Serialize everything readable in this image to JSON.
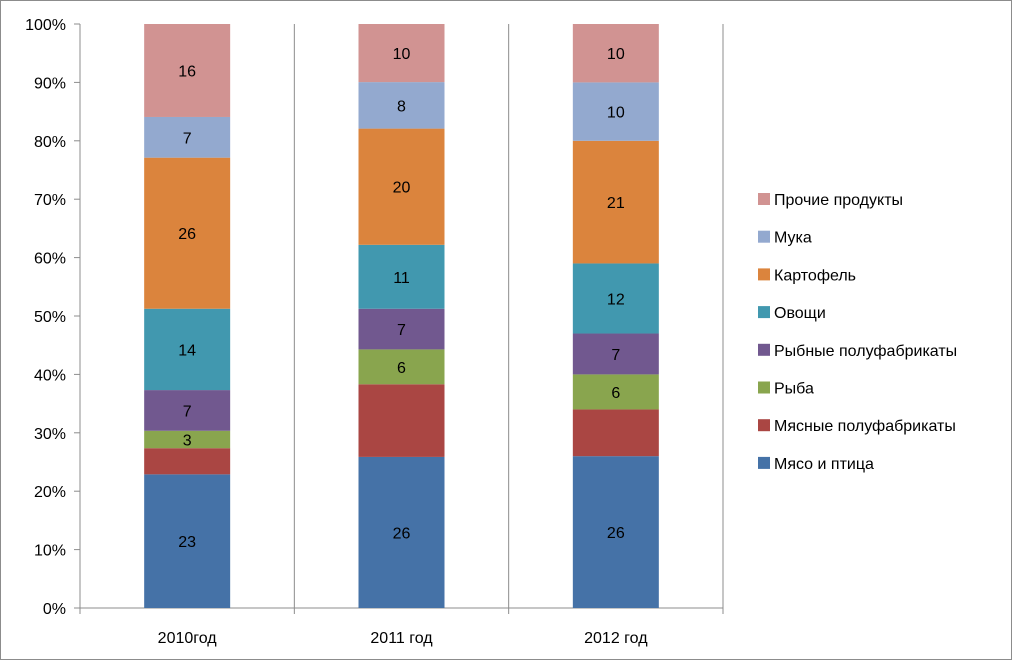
{
  "chart_data": {
    "type": "bar",
    "stacked": "percent",
    "categories": [
      "2010год",
      "2011 год",
      "2012 год"
    ],
    "series": [
      {
        "name": "Мясо и птица",
        "values": [
          23,
          26,
          26
        ],
        "labels": [
          "23",
          "26",
          "26"
        ],
        "color": "#4572a7"
      },
      {
        "name": "Мясные полуфабрикаты",
        "values": [
          4.5,
          12.5,
          8
        ],
        "labels": [
          "",
          "",
          ""
        ],
        "color": "#aa4643"
      },
      {
        "name": "Рыба",
        "values": [
          3,
          6,
          6
        ],
        "labels": [
          "3",
          "6",
          "6"
        ],
        "color": "#89a54e"
      },
      {
        "name": "Рыбные полуфабрикаты",
        "values": [
          7,
          7,
          7
        ],
        "labels": [
          "7",
          "7",
          "7"
        ],
        "color": "#71588f"
      },
      {
        "name": "Овощи",
        "values": [
          14,
          11,
          12
        ],
        "labels": [
          "14",
          "11",
          "12"
        ],
        "color": "#4198af"
      },
      {
        "name": "Картофель",
        "values": [
          26,
          20,
          21
        ],
        "labels": [
          "26",
          "20",
          "21"
        ],
        "color": "#db843d"
      },
      {
        "name": "Мука",
        "values": [
          7,
          8,
          10
        ],
        "labels": [
          "7",
          "8",
          "10"
        ],
        "color": "#93a9cf"
      },
      {
        "name": "Прочие продукты",
        "values": [
          16,
          10,
          10
        ],
        "labels": [
          "16",
          "10",
          "10"
        ],
        "color": "#d19392"
      }
    ],
    "yticks": [
      "0%",
      "10%",
      "20%",
      "30%",
      "40%",
      "50%",
      "60%",
      "70%",
      "80%",
      "90%",
      "100%"
    ],
    "ylim": [
      0,
      100
    ],
    "grid": "vertical-category",
    "legend": "right"
  }
}
